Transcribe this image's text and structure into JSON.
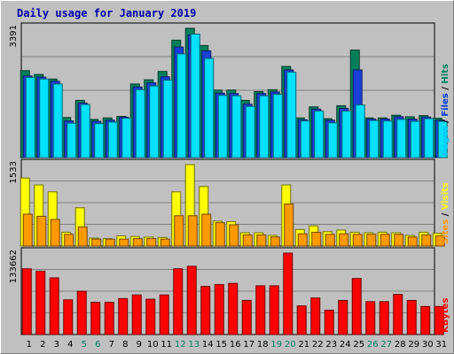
{
  "chart_data": {
    "type": "bar",
    "title": "Daily usage for January 2019",
    "categories": [
      "1",
      "2",
      "3",
      "4",
      "5",
      "6",
      "7",
      "8",
      "9",
      "10",
      "11",
      "12",
      "13",
      "14",
      "15",
      "16",
      "17",
      "18",
      "19",
      "20",
      "21",
      "22",
      "23",
      "24",
      "25",
      "26",
      "27",
      "28",
      "29",
      "30",
      "31"
    ],
    "weekend_days": [
      "5",
      "6",
      "12",
      "13",
      "19",
      "20",
      "26",
      "27"
    ],
    "panels": [
      {
        "name": "requests",
        "ymax_label": "3391",
        "ymax": 3391,
        "legend": [
          {
            "text": "Pages",
            "color": "#00c8ff"
          },
          {
            "text": "Files",
            "color": "#0038e0"
          },
          {
            "text": "Hits",
            "color": "#008060"
          }
        ],
        "series": [
          {
            "name": "Hits",
            "color": "#00805a",
            "values": [
              2280,
              2180,
              2060,
              1050,
              1500,
              1000,
              1040,
              1080,
              1930,
              2040,
              2260,
              3080,
              3391,
              2940,
              1770,
              1770,
              1500,
              1730,
              1780,
              2390,
              1040,
              1330,
              1020,
              1360,
              2820,
              1040,
              1040,
              1110,
              1070,
              1100,
              1030
            ]
          },
          {
            "name": "Files",
            "color": "#1840d8",
            "values": [
              2140,
              2110,
              2000,
              960,
              1430,
              950,
              980,
              1060,
              1850,
              1960,
              2120,
              2900,
              3220,
              2800,
              1690,
              1680,
              1400,
              1680,
              1720,
              2300,
              990,
              1270,
              980,
              1290,
              2300,
              1010,
              1010,
              1070,
              1010,
              1060,
              980
            ]
          },
          {
            "name": "Pages",
            "color": "#00e0ff",
            "values": [
              2100,
              2060,
              1930,
              900,
              1390,
              890,
              930,
              1030,
              1780,
              1880,
              2030,
              2720,
              3240,
              2600,
              1630,
              1620,
              1340,
              1620,
              1660,
              2240,
              960,
              1220,
              910,
              1220,
              1380,
              970,
              960,
              1000,
              950,
              1020,
              950
            ]
          }
        ]
      },
      {
        "name": "visits",
        "ymax_label": "1533",
        "ymax": 1533,
        "legend": [
          {
            "text": "Sites",
            "color": "#ff9900"
          },
          {
            "text": "Visits",
            "color": "#ffff00"
          }
        ],
        "series": [
          {
            "name": "Visits",
            "color": "#ffff00",
            "values": [
              1280,
              1150,
              1020,
              260,
              720,
              150,
              140,
              190,
              180,
              170,
              160,
              1020,
              1533,
              1120,
              470,
              460,
              250,
              250,
              200,
              1150,
              310,
              380,
              270,
              300,
              260,
              250,
              260,
              250,
              200,
              260,
              240
            ]
          },
          {
            "name": "Sites",
            "color": "#ff9900",
            "values": [
              600,
              560,
              500,
              220,
              360,
              130,
              130,
              130,
              140,
              140,
              130,
              570,
              570,
              600,
              440,
              400,
              210,
              210,
              170,
              790,
              230,
              260,
              220,
              230,
              220,
              220,
              220,
              220,
              170,
              210,
              190
            ]
          }
        ]
      },
      {
        "name": "kbytes",
        "ymax_label": "133662",
        "ymax": 133662,
        "legend": [
          {
            "text": "KBytes",
            "color": "#ff0000"
          }
        ],
        "series": [
          {
            "name": "KBytes",
            "color": "#ff0000",
            "values": [
              108000,
              104000,
              93000,
              57000,
              71000,
              53000,
              53000,
              59000,
              65000,
              58000,
              65000,
              108000,
              112000,
              79000,
              82000,
              84000,
              56000,
              80000,
              80000,
              133662,
              47000,
              60000,
              40000,
              56000,
              92000,
              54000,
              54000,
              66000,
              56000,
              46000,
              46000
            ]
          }
        ]
      }
    ]
  }
}
